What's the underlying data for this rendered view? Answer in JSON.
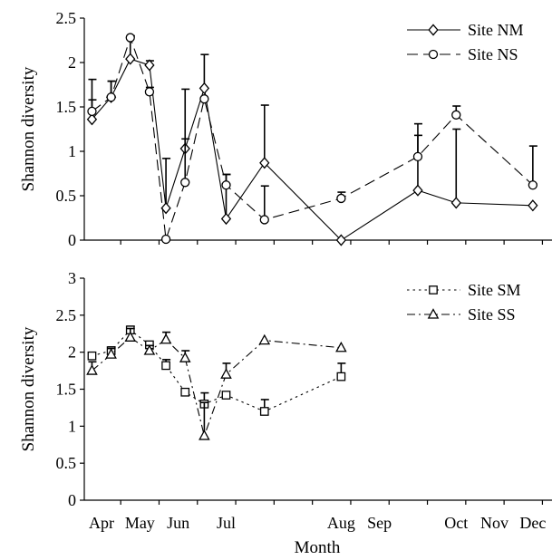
{
  "chart_data": [
    {
      "type": "line",
      "ylabel": "Shannon diversity",
      "ylim": [
        0,
        2.5
      ],
      "yticks": [
        "0",
        "0.5",
        "1",
        "1.5",
        "2",
        "2.5"
      ],
      "legend_position": "top-right",
      "series": [
        {
          "name": "Site NM",
          "marker": "diamond",
          "dash": "solid",
          "points": [
            {
              "x": 0.0,
              "y": 1.36,
              "err": 0.22
            },
            {
              "x": 0.5,
              "y": 1.61,
              "err": 0.18
            },
            {
              "x": 1.0,
              "y": 2.04,
              "err": 0.26
            },
            {
              "x": 1.5,
              "y": 1.97,
              "err": 0.05
            },
            {
              "x": 1.93,
              "y": 0.36,
              "err": 0.56
            },
            {
              "x": 2.43,
              "y": 1.03,
              "err": 0.67
            },
            {
              "x": 2.93,
              "y": 1.71,
              "err": 0.38
            },
            {
              "x": 3.5,
              "y": 0.24,
              "err": 0.5
            },
            {
              "x": 4.5,
              "y": 0.87,
              "err": 0.65
            },
            {
              "x": 6.5,
              "y": 0.0,
              "err": 0
            },
            {
              "x": 8.5,
              "y": 0.56,
              "err": 0.62
            },
            {
              "x": 9.5,
              "y": 0.42,
              "err": 0.83
            },
            {
              "x": 11.5,
              "y": 0.39,
              "err": 0
            }
          ]
        },
        {
          "name": "Site NS",
          "marker": "circle",
          "dash": "dashed",
          "points": [
            {
              "x": 0.0,
              "y": 1.45,
              "err": 0.36
            },
            {
              "x": 0.5,
              "y": 1.61,
              "err": 0.18
            },
            {
              "x": 1.0,
              "y": 2.28,
              "err": 0.02
            },
            {
              "x": 1.5,
              "y": 1.67,
              "err": 0.05
            },
            {
              "x": 1.93,
              "y": 0.01,
              "err": 0
            },
            {
              "x": 2.43,
              "y": 0.65,
              "err": 0.49
            },
            {
              "x": 2.93,
              "y": 1.59,
              "err": 0
            },
            {
              "x": 3.5,
              "y": 0.62,
              "err": 0.12
            },
            {
              "x": 4.5,
              "y": 0.23,
              "err": 0.38
            },
            {
              "x": 6.5,
              "y": 0.47,
              "err": 0.07
            },
            {
              "x": 8.5,
              "y": 0.94,
              "err": 0.37
            },
            {
              "x": 9.5,
              "y": 1.41,
              "err": 0.1
            },
            {
              "x": 11.5,
              "y": 0.62,
              "err": 0.44
            }
          ]
        }
      ]
    },
    {
      "type": "line",
      "xlabel": "Month",
      "ylabel": "Shannon diversity",
      "ylim": [
        0,
        3
      ],
      "yticks": [
        "0",
        "0.5",
        "1",
        "1.5",
        "2",
        "2.5",
        "3"
      ],
      "categories": [
        "Apr",
        "May",
        "Jun",
        "Jul",
        "Aug",
        "Sep",
        "Oct",
        "Nov",
        "Dec"
      ],
      "xlim": [
        -0.2,
        12.0
      ],
      "legend_position": "top-right",
      "series": [
        {
          "name": "Site SM",
          "marker": "square",
          "dash": "dotted",
          "points": [
            {
              "x": 0.0,
              "y": 1.95,
              "err": 0
            },
            {
              "x": 0.5,
              "y": 2.02,
              "err": 0.05
            },
            {
              "x": 1.0,
              "y": 2.3,
              "err": 0.05
            },
            {
              "x": 1.5,
              "y": 2.1,
              "err": 0
            },
            {
              "x": 1.93,
              "y": 1.82,
              "err": 0.08
            },
            {
              "x": 2.43,
              "y": 1.46,
              "err": 0
            },
            {
              "x": 2.93,
              "y": 1.3,
              "err": 0.15
            },
            {
              "x": 3.5,
              "y": 1.42,
              "err": 0
            },
            {
              "x": 4.5,
              "y": 1.2,
              "err": 0.16
            },
            {
              "x": 6.5,
              "y": 1.67,
              "err": 0.18
            }
          ]
        },
        {
          "name": "Site SS",
          "marker": "triangle",
          "dash": "dashdot",
          "points": [
            {
              "x": 0.0,
              "y": 1.75,
              "err": 0.12
            },
            {
              "x": 0.5,
              "y": 1.97,
              "err": 0.08
            },
            {
              "x": 1.0,
              "y": 2.2,
              "err": 0.12
            },
            {
              "x": 1.5,
              "y": 2.02,
              "err": 0.07
            },
            {
              "x": 1.93,
              "y": 2.17,
              "err": 0.1
            },
            {
              "x": 2.43,
              "y": 1.92,
              "err": 0.1
            },
            {
              "x": 2.93,
              "y": 0.87,
              "err": 0.45
            },
            {
              "x": 3.5,
              "y": 1.7,
              "err": 0.15
            },
            {
              "x": 4.5,
              "y": 2.16,
              "err": 0
            },
            {
              "x": 6.5,
              "y": 2.06,
              "err": 0
            }
          ]
        }
      ]
    }
  ]
}
